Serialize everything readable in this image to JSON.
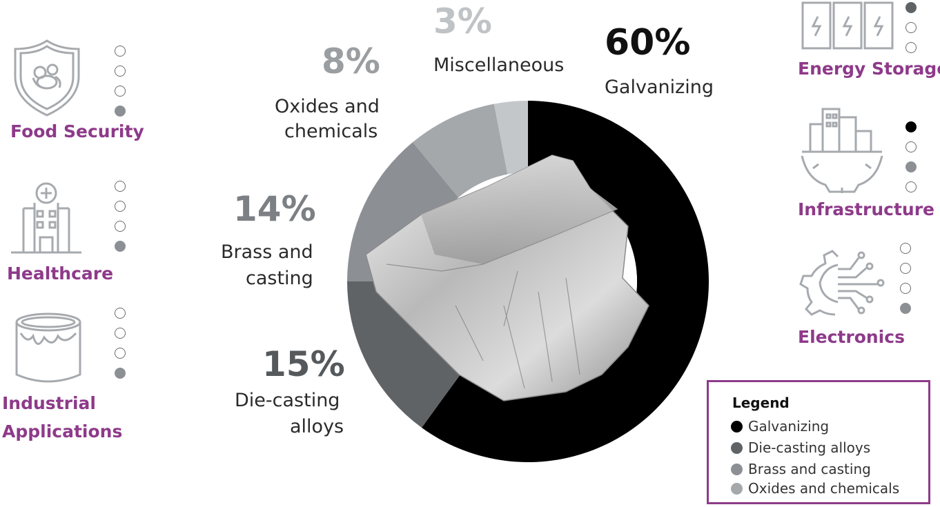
{
  "colors": {
    "accent": "#8e3a8a",
    "icon_gray": "#a6aaae",
    "galvanizing": "#000000",
    "die_casting": "#5f6366",
    "brass": "#8c9094",
    "oxides": "#a5a8ab",
    "misc": "#c4c7ca"
  },
  "chart_data": {
    "type": "pie",
    "donut": true,
    "start_angle_deg": 0,
    "direction": "clockwise",
    "slices": [
      {
        "label": "Galvanizing",
        "label_lines": [
          "Galvanizing"
        ],
        "value": 60,
        "pct_text": "60%",
        "color": "#000000",
        "pct_color": "#111111"
      },
      {
        "label": "Die-casting alloys",
        "label_lines": [
          "Die-casting",
          "alloys"
        ],
        "value": 15,
        "pct_text": "15%",
        "color": "#5f6366",
        "pct_color": "#55595c"
      },
      {
        "label": "Brass and casting",
        "label_lines": [
          "Brass and",
          "casting"
        ],
        "value": 14,
        "pct_text": "14%",
        "color": "#8c9094",
        "pct_color": "#7c8084"
      },
      {
        "label": "Oxides and chemicals",
        "label_lines": [
          "Oxides and",
          "chemicals"
        ],
        "value": 8,
        "pct_text": "8%",
        "color": "#a5a8ab",
        "pct_color": "#9b9ea1"
      },
      {
        "label": "Miscellaneous",
        "label_lines": [
          "Miscellaneous"
        ],
        "value": 3,
        "pct_text": "3%",
        "color": "#c4c7ca",
        "pct_color": "#c0c3c6"
      }
    ]
  },
  "legend": {
    "title": "Legend",
    "items": [
      {
        "label": "Galvanizing",
        "color": "#000000"
      },
      {
        "label": "Die-casting alloys",
        "color": "#5f6366"
      },
      {
        "label": "Brass and casting",
        "color": "#8c9094"
      },
      {
        "label": "Oxides and chemicals",
        "color": "#a5a8ab"
      }
    ]
  },
  "applications": {
    "food_security": {
      "label": "Food Security",
      "icon": "food-shield-icon",
      "dots": [
        0,
        0,
        0,
        3
      ]
    },
    "healthcare": {
      "label": "Healthcare",
      "icon": "hospital-icon",
      "dots": [
        0,
        0,
        0,
        3
      ]
    },
    "industrial": {
      "label_lines": [
        "Industrial",
        "Applications"
      ],
      "icon": "paint-can-icon",
      "dots": [
        0,
        0,
        0,
        3
      ]
    },
    "energy_storage": {
      "label": "Energy Storage",
      "icon": "battery-icon",
      "dots": [
        2,
        0,
        0
      ]
    },
    "infrastructure": {
      "label": "Infrastructure",
      "icon": "city-gear-icon",
      "dots": [
        1,
        0,
        3,
        0
      ]
    },
    "electronics": {
      "label": "Electronics",
      "icon": "circuit-gear-icon",
      "dots": [
        0,
        0,
        0,
        3
      ]
    }
  }
}
